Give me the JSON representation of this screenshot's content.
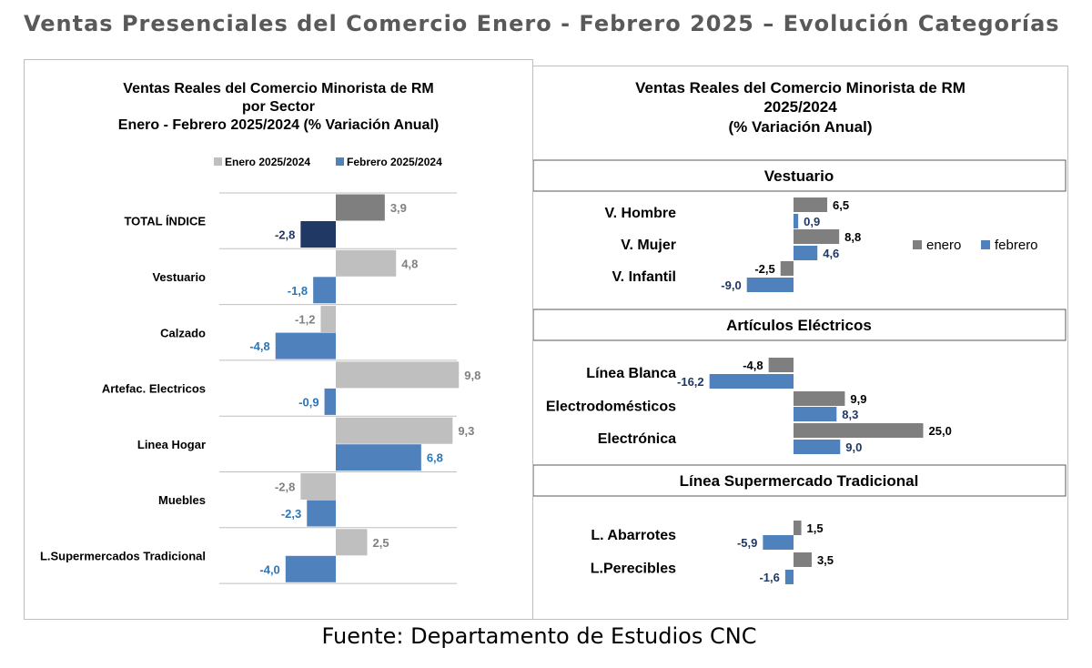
{
  "page_title": "Ventas Presenciales del Comercio Enero - Febrero 2025 – Evolución Categorías",
  "source": "Fuente: Departamento de Estudios CNC",
  "colors": {
    "enero_left": "#bfbfbf",
    "enero_right": "#7f7f7f",
    "total_enero": "#7f7f7f",
    "total_febrero": "#1f3864",
    "febrero": "#4f81bd",
    "febrero_label": "#2e75b6",
    "enero_label": "#808080"
  },
  "chart_data": [
    {
      "type": "bar",
      "orientation": "horizontal",
      "title_lines": [
        "Ventas Reales del Comercio Minorista de RM",
        "por Sector",
        "Enero - Febrero 2025/2024 (% Variación Anual)"
      ],
      "legend_position": "top",
      "legend": [
        "Enero 2025/2024",
        "Febrero 2025/2024"
      ],
      "categories": [
        "TOTAL ÍNDICE",
        "Vestuario",
        "Calzado",
        "Artefac. Electricos",
        "Linea Hogar",
        "Muebles",
        "L.Supermercados Tradicional"
      ],
      "series": [
        {
          "name": "Enero 2025/2024",
          "values": [
            3.9,
            4.8,
            -1.2,
            9.8,
            9.3,
            -2.8,
            2.5
          ],
          "labels": [
            "3,9",
            "4,8",
            "-1,2",
            "9,8",
            "9,3",
            "-2,8",
            "2,5"
          ]
        },
        {
          "name": "Febrero 2025/2024",
          "values": [
            -2.8,
            -1.8,
            -4.8,
            -0.9,
            6.8,
            -2.3,
            -4.0
          ],
          "labels": [
            "-2,8",
            "-1,8",
            "-4,8",
            "-0,9",
            "6,8",
            "-2,3",
            "-4,0"
          ]
        }
      ],
      "xlim": [
        -10,
        10
      ],
      "grid": "horizontal separators"
    },
    {
      "type": "bar",
      "orientation": "horizontal",
      "title_lines": [
        "Ventas Reales del Comercio Minorista de RM",
        "2025/2024",
        "(% Variación Anual)"
      ],
      "legend_position": "right",
      "legend": [
        "enero",
        "febrero"
      ],
      "groups": [
        {
          "name": "Vestuario",
          "categories": [
            "V. Hombre",
            "V. Mujer",
            "V. Infantil"
          ],
          "enero": [
            6.5,
            8.8,
            -2.5
          ],
          "febrero": [
            0.9,
            4.6,
            -9.0
          ],
          "enero_labels": [
            "6,5",
            "8,8",
            "-2,5"
          ],
          "febrero_labels": [
            "0,9",
            "4,6",
            "-9,0"
          ]
        },
        {
          "name": "Artículos Eléctricos",
          "categories": [
            "Línea Blanca",
            "Electrodomésticos",
            "Electrónica"
          ],
          "enero": [
            -4.8,
            9.9,
            25.0
          ],
          "febrero": [
            -16.2,
            8.3,
            9.0
          ],
          "enero_labels": [
            "-4,8",
            "9,9",
            "25,0"
          ],
          "febrero_labels": [
            "-16,2",
            "8,3",
            "9,0"
          ]
        },
        {
          "name": "Línea Supermercado Tradicional",
          "categories": [
            "L. Abarrotes",
            "L.Perecibles"
          ],
          "enero": [
            1.5,
            3.5
          ],
          "febrero": [
            -5.9,
            -1.6
          ],
          "enero_labels": [
            "1,5",
            "3,5"
          ],
          "febrero_labels": [
            "-5,9",
            "-1,6"
          ]
        }
      ]
    }
  ]
}
